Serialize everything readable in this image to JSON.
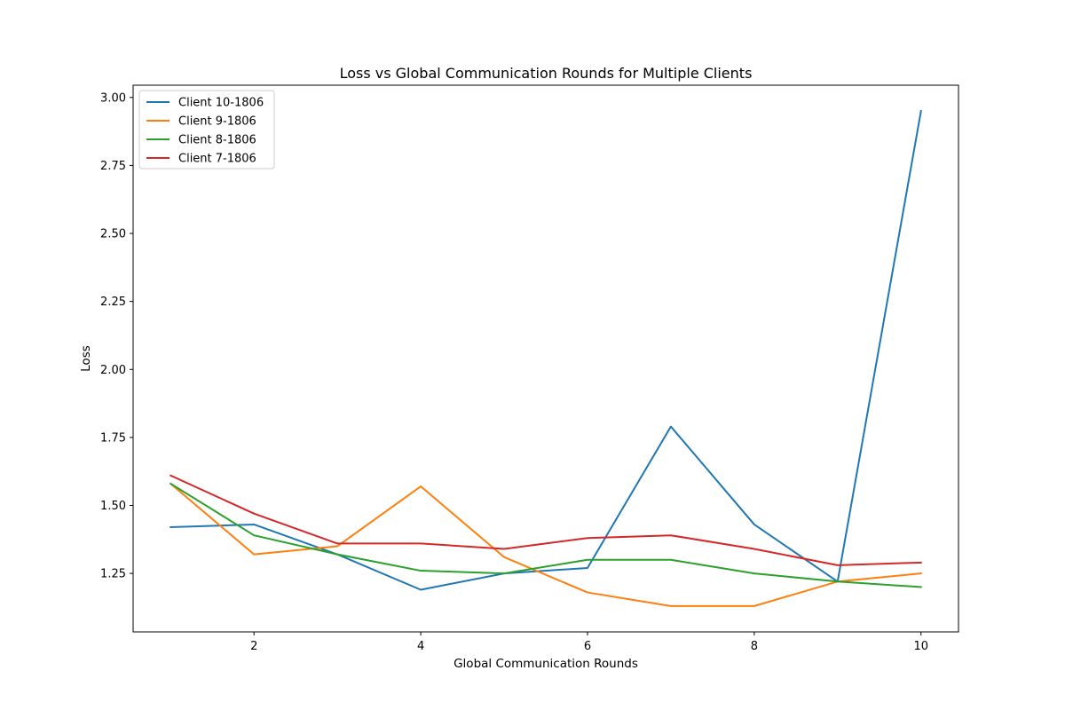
{
  "chart_data": {
    "type": "line",
    "title": "Loss vs Global Communication Rounds for Multiple Clients",
    "xlabel": "Global Communication Rounds",
    "ylabel": "Loss",
    "xlim": [
      0.55,
      10.45
    ],
    "ylim": [
      1.035,
      3.045
    ],
    "xticks": [
      2,
      4,
      6,
      8,
      10
    ],
    "xtick_labels": [
      "2",
      "4",
      "6",
      "8",
      "10"
    ],
    "yticks": [
      1.25,
      1.5,
      1.75,
      2.0,
      2.25,
      2.5,
      2.75,
      3.0
    ],
    "ytick_labels": [
      "1.25",
      "1.50",
      "1.75",
      "2.00",
      "2.25",
      "2.50",
      "2.75",
      "3.00"
    ],
    "grid": false,
    "legend_position": "top-left",
    "x": [
      1,
      2,
      3,
      4,
      5,
      6,
      7,
      8,
      9,
      10
    ],
    "series": [
      {
        "name": "Client 10-1806",
        "color": "#1f77b4",
        "values": [
          1.42,
          1.43,
          1.32,
          1.19,
          1.25,
          1.27,
          1.79,
          1.43,
          1.22,
          2.95
        ]
      },
      {
        "name": "Client 9-1806",
        "color": "#ff7f0e",
        "values": [
          1.58,
          1.32,
          1.35,
          1.57,
          1.31,
          1.18,
          1.13,
          1.13,
          1.22,
          1.25
        ]
      },
      {
        "name": "Client 8-1806",
        "color": "#2ca02c",
        "values": [
          1.58,
          1.39,
          1.32,
          1.26,
          1.25,
          1.3,
          1.3,
          1.25,
          1.22,
          1.2
        ]
      },
      {
        "name": "Client 7-1806",
        "color": "#d62728",
        "values": [
          1.61,
          1.47,
          1.36,
          1.36,
          1.34,
          1.38,
          1.39,
          1.34,
          1.28,
          1.29
        ]
      }
    ]
  }
}
